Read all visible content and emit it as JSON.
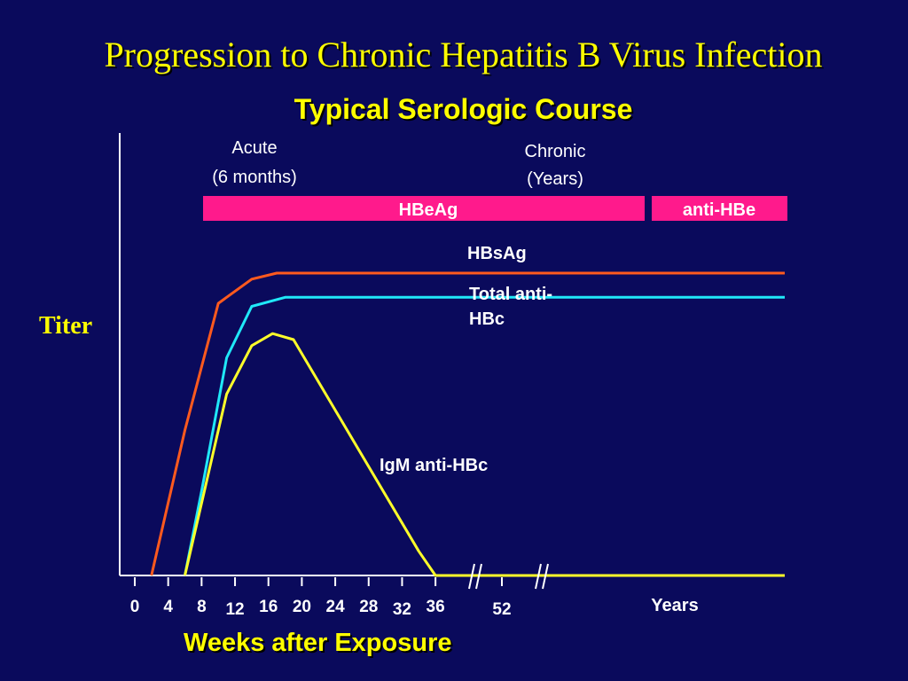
{
  "title": "Progression to Chronic Hepatitis B Virus Infection",
  "subtitle": "Typical Serologic Course",
  "colors": {
    "background": "#0a0a5c",
    "title": "#ffff00",
    "hbsag": "#ff5a1e",
    "anti_hbc": "#20e8f8",
    "igm_anti_hbc": "#ffff2a",
    "marker_bar": "#ff1a8c",
    "axis": "#ffffff"
  },
  "chart_data": {
    "type": "line",
    "xlabel": "Weeks after Exposure",
    "ylabel": "Titer",
    "x_ticks": [
      "0",
      "4",
      "8",
      "12",
      "16",
      "20",
      "24",
      "28",
      "32",
      "36",
      "52"
    ],
    "x_extra_label": "Years",
    "phases": [
      {
        "line1": "Acute",
        "line2": "(6 months)"
      },
      {
        "line1": "Chronic",
        "line2": "(Years)"
      }
    ],
    "marker_bars": [
      {
        "label": "HBeAg",
        "from_week": 8,
        "to": "chronic"
      },
      {
        "label": "anti-HBe",
        "from": "late chronic",
        "to": "years"
      }
    ],
    "series": [
      {
        "name": "HBsAg",
        "color_key": "hbsag",
        "points": [
          [
            2,
            0
          ],
          [
            6,
            48
          ],
          [
            10,
            90
          ],
          [
            14,
            98
          ],
          [
            17,
            100
          ],
          [
            36,
            100
          ],
          [
            52,
            100
          ],
          [
            "Years",
            100
          ]
        ]
      },
      {
        "name": "Total anti-HBc",
        "color_key": "anti_hbc",
        "points": [
          [
            6,
            0
          ],
          [
            8,
            28
          ],
          [
            11,
            72
          ],
          [
            14,
            89
          ],
          [
            18,
            92
          ],
          [
            36,
            92
          ],
          [
            52,
            92
          ],
          [
            "Years",
            92
          ]
        ]
      },
      {
        "name": "IgM anti-HBc",
        "color_key": "igm_anti_hbc",
        "points": [
          [
            6,
            0
          ],
          [
            8,
            24
          ],
          [
            11,
            60
          ],
          [
            14,
            76
          ],
          [
            16.5,
            80
          ],
          [
            19,
            78
          ],
          [
            34,
            8
          ],
          [
            36,
            0
          ],
          [
            52,
            0
          ],
          [
            "Years",
            0
          ]
        ]
      }
    ],
    "axis_breaks": [
      "between 36 and 52",
      "between 52 and Years"
    ]
  }
}
